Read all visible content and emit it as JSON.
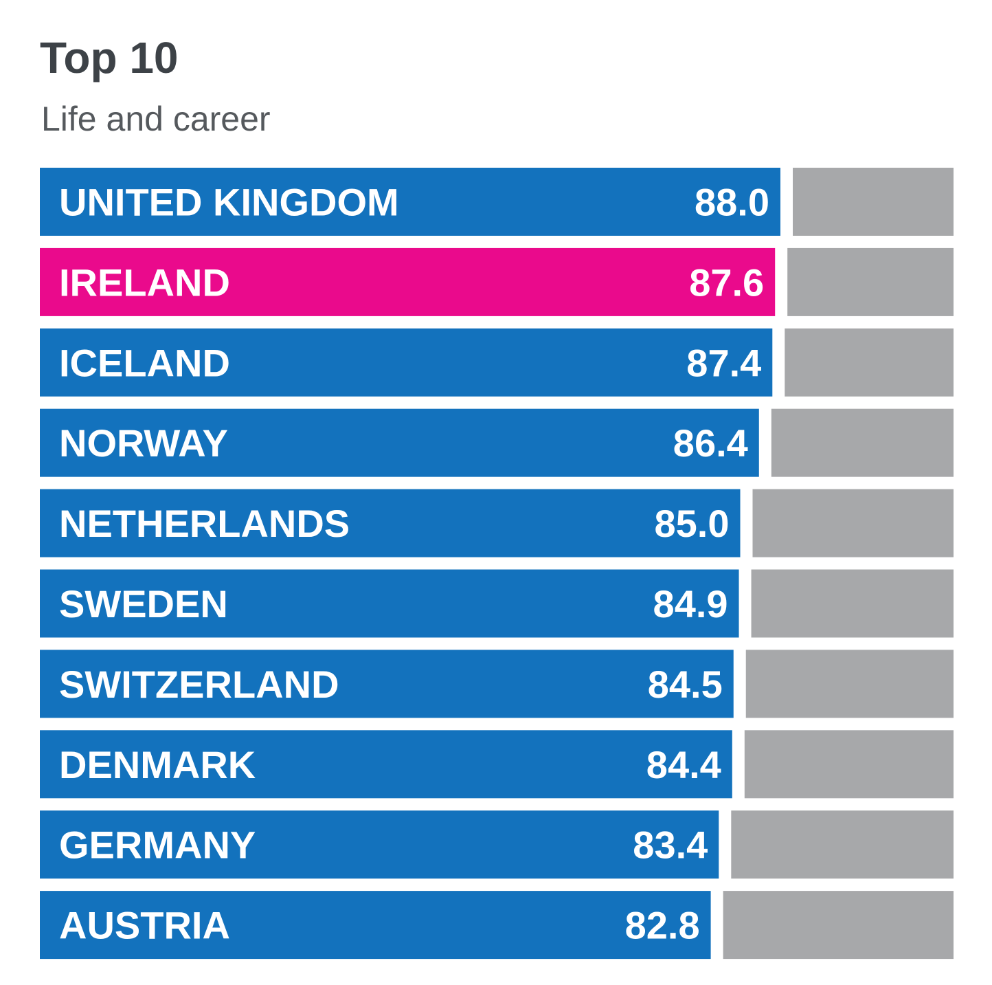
{
  "title": "Top 10",
  "subtitle": "Life and career",
  "colors": {
    "bar": "#1372bd",
    "highlight": "#ea0a8c",
    "remainder": "#a7a8aa"
  },
  "chart_data": {
    "type": "bar",
    "orientation": "horizontal",
    "title": "Top 10",
    "subtitle": "Life and career",
    "xlim": [
      0,
      100
    ],
    "grid": false,
    "legend": "none",
    "highlight_category": "IRELAND",
    "categories": [
      "UNITED KINGDOM",
      "IRELAND",
      "ICELAND",
      "NORWAY",
      "NETHERLANDS",
      "SWEDEN",
      "SWITZERLAND",
      "DENMARK",
      "GERMANY",
      "AUSTRIA"
    ],
    "values": [
      88.0,
      87.6,
      87.4,
      86.4,
      85.0,
      84.9,
      84.5,
      84.4,
      83.4,
      82.8
    ],
    "value_labels": [
      "88.0",
      "87.6",
      "87.4",
      "86.4",
      "85.0",
      "84.9",
      "84.5",
      "84.4",
      "83.4",
      "82.8"
    ]
  }
}
